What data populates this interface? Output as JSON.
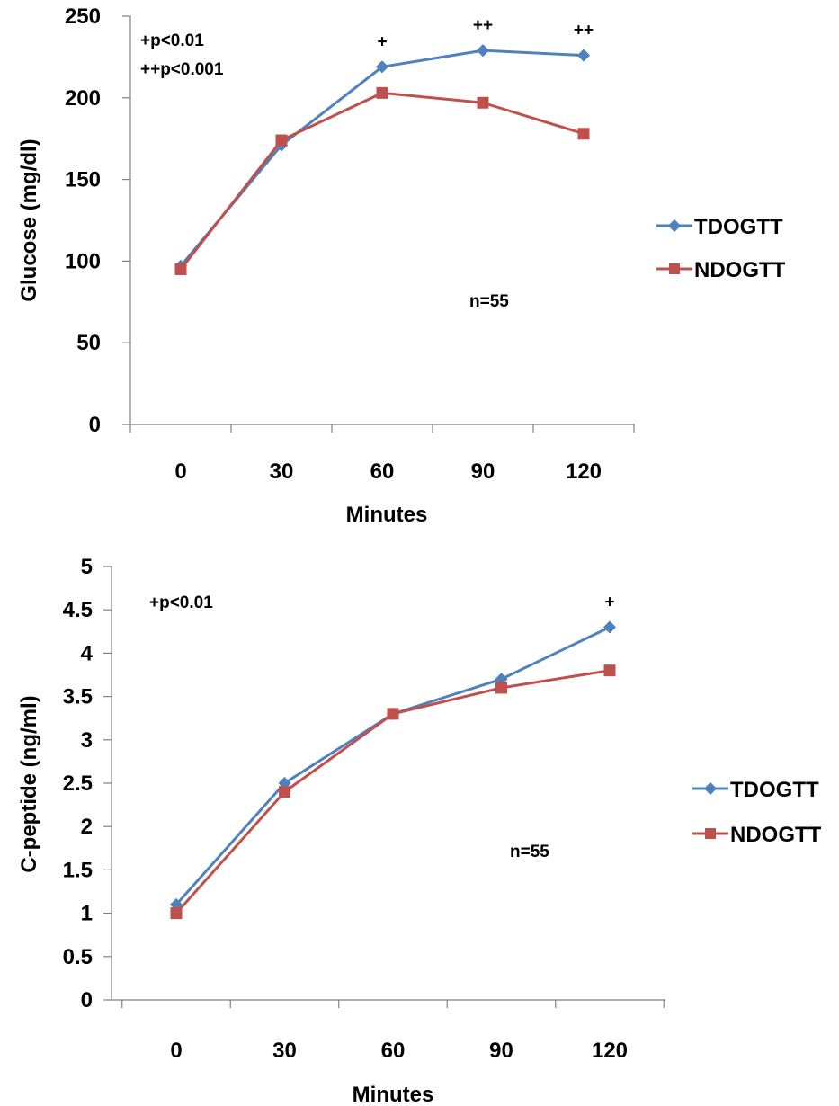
{
  "colors": {
    "TDOGTT": "#4F81BD",
    "NDOGTT": "#C0504D",
    "axis": "#808080"
  },
  "chart_data": [
    {
      "type": "line",
      "x": [
        0,
        30,
        60,
        90,
        120
      ],
      "x_tick_labels": [
        "0",
        "30",
        "60",
        "90",
        "120"
      ],
      "xlabel": "Minutes",
      "ylabel": "Glucose (mg/dl)",
      "ylim": [
        0,
        250
      ],
      "y_tick_labels": [
        "0",
        "50",
        "100",
        "150",
        "200",
        "250"
      ],
      "grid": false,
      "legend_position": "right",
      "series": [
        {
          "name": "TDOGTT",
          "marker": "diamond",
          "values": [
            97,
            171,
            219,
            229,
            226
          ]
        },
        {
          "name": "NDOGTT",
          "marker": "square",
          "values": [
            95,
            174,
            203,
            197,
            178
          ]
        }
      ],
      "significance_marks": [
        {
          "x": 60,
          "label": "+"
        },
        {
          "x": 90,
          "label": "++"
        },
        {
          "x": 120,
          "label": "++"
        }
      ],
      "annotations": {
        "legend_line1": "+p<0.01",
        "legend_line2": "++p<0.001",
        "n": "n=55"
      }
    },
    {
      "type": "line",
      "x": [
        0,
        30,
        60,
        90,
        120
      ],
      "x_tick_labels": [
        "0",
        "30",
        "60",
        "90",
        "120"
      ],
      "xlabel": "Minutes",
      "ylabel": "C-peptide (ng/ml)",
      "ylim": [
        0,
        5
      ],
      "y_tick_labels": [
        "0",
        "0.5",
        "1",
        "1.5",
        "2",
        "2.5",
        "3",
        "3.5",
        "4",
        "4.5",
        "5"
      ],
      "grid": false,
      "legend_position": "right",
      "series": [
        {
          "name": "TDOGTT",
          "marker": "diamond",
          "values": [
            1.1,
            2.5,
            3.3,
            3.7,
            4.3
          ]
        },
        {
          "name": "NDOGTT",
          "marker": "square",
          "values": [
            1.0,
            2.4,
            3.3,
            3.6,
            3.8
          ]
        }
      ],
      "significance_marks": [
        {
          "x": 120,
          "label": "+"
        }
      ],
      "annotations": {
        "legend_line1": "+p<0.01",
        "n": "n=55"
      }
    }
  ]
}
